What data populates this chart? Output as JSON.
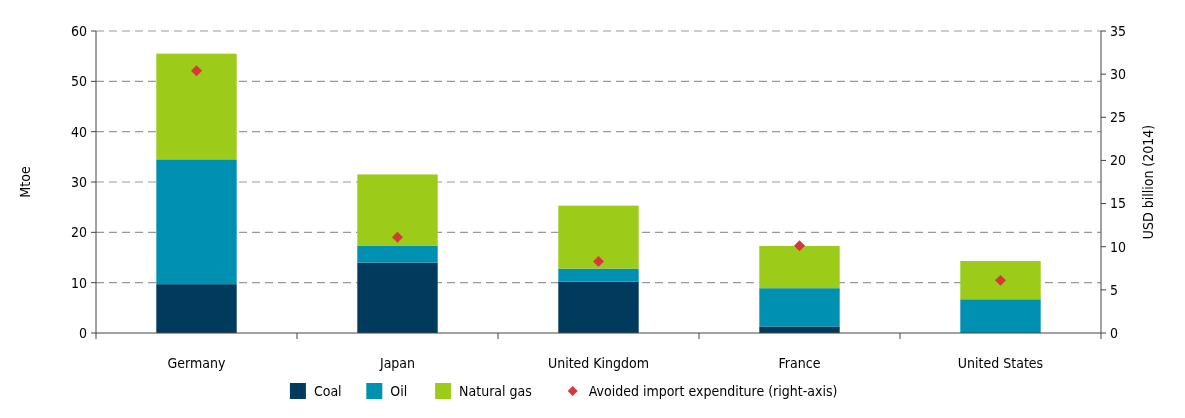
{
  "chart_data": {
    "type": "bar",
    "stacked": true,
    "categories": [
      "Germany",
      "Japan",
      "United Kingdom",
      "France",
      "United States"
    ],
    "series": [
      {
        "name": "Coal",
        "color": "#003a5c",
        "values": [
          9.7,
          14,
          10.2,
          1.3,
          0
        ]
      },
      {
        "name": "Oil",
        "color": "#0090b2",
        "values": [
          24.8,
          3.3,
          2.6,
          7.6,
          6.7
        ]
      },
      {
        "name": "Natural gas",
        "color": "#9ccb19",
        "values": [
          21,
          14.2,
          12.5,
          8.4,
          7.6
        ]
      },
      {
        "name": "Avoided import expenditure (right-axis)",
        "type": "scatter",
        "axis": "y2",
        "marker": "diamond",
        "color": "#d7383a",
        "x": [
          "Germany",
          "Japan",
          "United Kingdom",
          "France",
          "United States"
        ],
        "values": [
          30.4,
          11.1,
          8.3,
          10.1,
          6.1
        ]
      }
    ],
    "ylabel": "Mtoe",
    "y2label": "USD billion (2014)",
    "ylim": [
      0,
      60
    ],
    "yticks": [
      0,
      10,
      20,
      30,
      40,
      50,
      60
    ],
    "y2lim": [
      0,
      35
    ],
    "y2ticks": [
      0,
      5,
      10,
      15,
      20,
      25,
      30,
      35
    ],
    "grid": "y",
    "legend": "bottom"
  }
}
